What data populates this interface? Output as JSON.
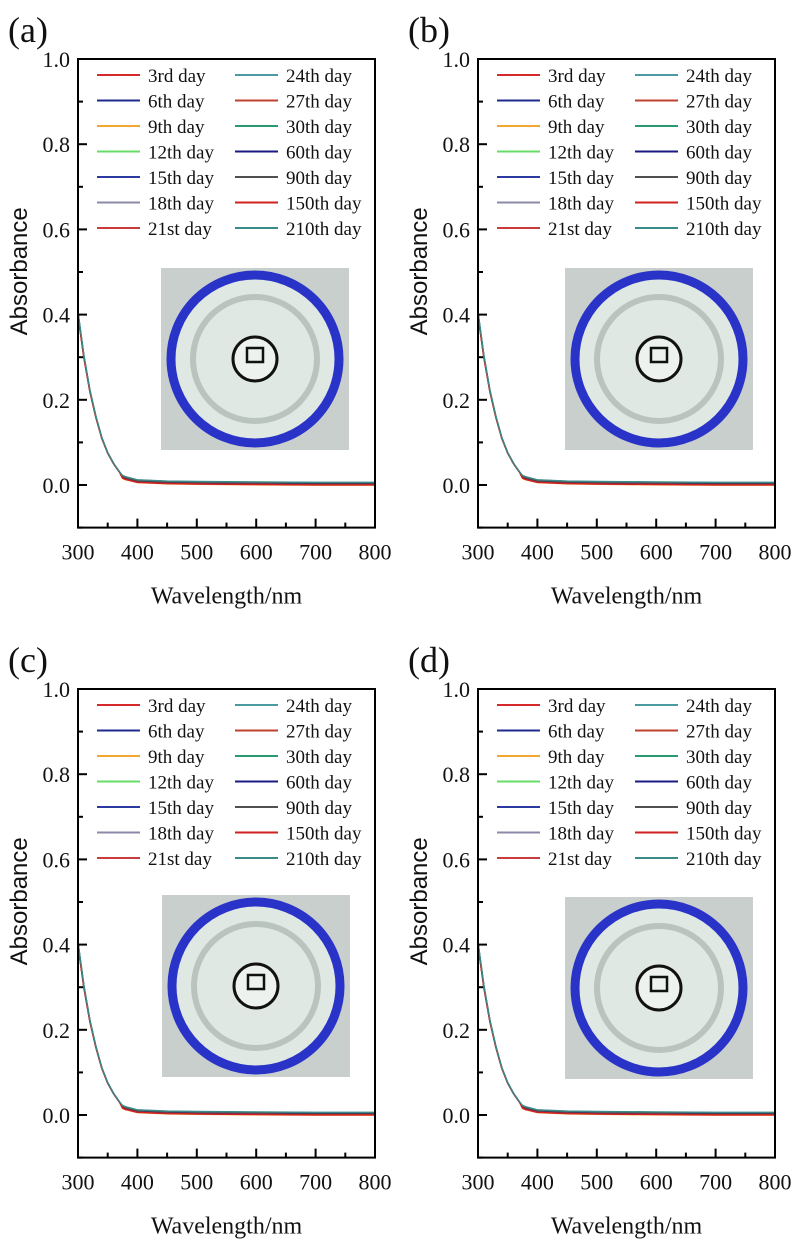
{
  "chart_data": [
    {
      "panel_label": "(a)",
      "type": "line",
      "xlabel": "Wavelength/nm",
      "ylabel": "Absorbance",
      "xlim": [
        300,
        800
      ],
      "ylim": [
        -0.1,
        1.0
      ],
      "inset": "photo of glass vial with blue rim viewed from top"
    },
    {
      "panel_label": "(b)",
      "type": "line",
      "xlabel": "Wavelength/nm",
      "ylabel": "Absorbance",
      "xlim": [
        300,
        800
      ],
      "ylim": [
        -0.1,
        1.0
      ],
      "inset": "photo of glass vial with blue rim viewed from top"
    },
    {
      "panel_label": "(c)",
      "type": "line",
      "xlabel": "Wavelength/nm",
      "ylabel": "Absorbance",
      "xlim": [
        300,
        800
      ],
      "ylim": [
        -0.1,
        1.0
      ],
      "inset": "photo of glass vial with blue rim viewed from top"
    },
    {
      "panel_label": "(d)",
      "type": "line",
      "xlabel": "Wavelength/nm",
      "ylabel": "Absorbance",
      "xlim": [
        300,
        800
      ],
      "ylim": [
        -0.1,
        1.0
      ],
      "inset": "photo of glass vial with blue rim viewed from top"
    }
  ],
  "shared": {
    "xticks": [
      300,
      400,
      500,
      600,
      700,
      800
    ],
    "xtick_labels": [
      "300",
      "400",
      "500",
      "600",
      "700",
      "800"
    ],
    "yticks": [
      0.0,
      0.2,
      0.4,
      0.6,
      0.8,
      1.0
    ],
    "ytick_labels": [
      "0.0",
      "0.2",
      "0.4",
      "0.6",
      "0.8",
      "1.0"
    ],
    "legend_placement": "top, two columns",
    "x": [
      300,
      310,
      320,
      330,
      340,
      350,
      360,
      370,
      375,
      380,
      400,
      450,
      500,
      600,
      700,
      800
    ],
    "base_y": [
      0.4,
      0.3,
      0.22,
      0.16,
      0.11,
      0.075,
      0.05,
      0.03,
      0.018,
      0.015,
      0.008,
      0.005,
      0.004,
      0.003,
      0.002,
      0.002
    ],
    "series": [
      {
        "name": "3rd day",
        "color": "#d62a2a",
        "offset": 0.0
      },
      {
        "name": "6th day",
        "color": "#1e2a8c",
        "offset": 0.001
      },
      {
        "name": "9th day",
        "color": "#f0a830",
        "offset": -0.004
      },
      {
        "name": "12th day",
        "color": "#66dd66",
        "offset": 0.002
      },
      {
        "name": "15th day",
        "color": "#2b3a9e",
        "offset": 0.002
      },
      {
        "name": "18th day",
        "color": "#8a8aa8",
        "offset": 0.003
      },
      {
        "name": "21st day",
        "color": "#c83c3c",
        "offset": -0.002
      },
      {
        "name": "24th day",
        "color": "#4a9aa0",
        "offset": 0.006
      },
      {
        "name": "27th day",
        "color": "#c04030",
        "offset": -0.001
      },
      {
        "name": "30th day",
        "color": "#2a9a70",
        "offset": 0.005
      },
      {
        "name": "60th day",
        "color": "#1a1a80",
        "offset": 0.003
      },
      {
        "name": "90th day",
        "color": "#505050",
        "offset": 0.004
      },
      {
        "name": "150th day",
        "color": "#d02020",
        "offset": -0.003
      },
      {
        "name": "210th day",
        "color": "#3a8a88",
        "offset": 0.007
      }
    ]
  }
}
